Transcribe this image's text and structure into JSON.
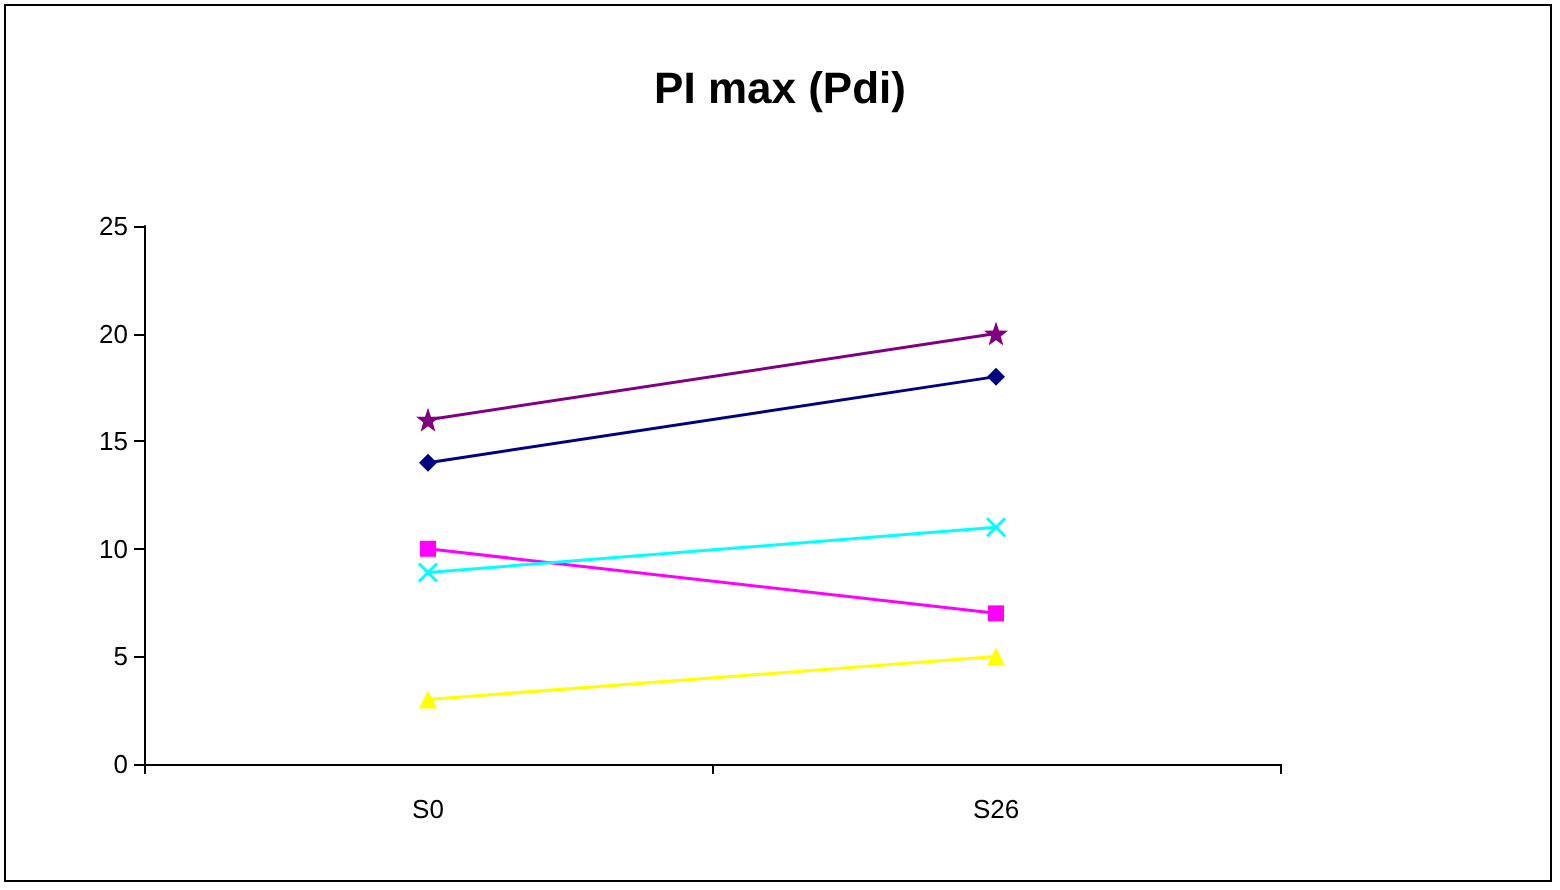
{
  "chart_data": {
    "type": "line",
    "title": "PI max (Pdi)",
    "categories": [
      "S0",
      "S26"
    ],
    "series": [
      {
        "color": "#000080",
        "marker": "diamond",
        "values": [
          14,
          18
        ]
      },
      {
        "color": "#ff00ff",
        "marker": "square",
        "values": [
          10,
          7
        ]
      },
      {
        "color": "#ffff00",
        "marker": "triangle",
        "values": [
          3,
          5
        ]
      },
      {
        "color": "#00ffff",
        "marker": "cross",
        "values": [
          8.9,
          11
        ]
      },
      {
        "color": "#800080",
        "marker": "star",
        "values": [
          16,
          20
        ]
      }
    ],
    "ylim": [
      0,
      25
    ],
    "yticks": [
      0,
      5,
      10,
      15,
      20,
      25
    ],
    "grid": false,
    "line_style": "solid"
  }
}
